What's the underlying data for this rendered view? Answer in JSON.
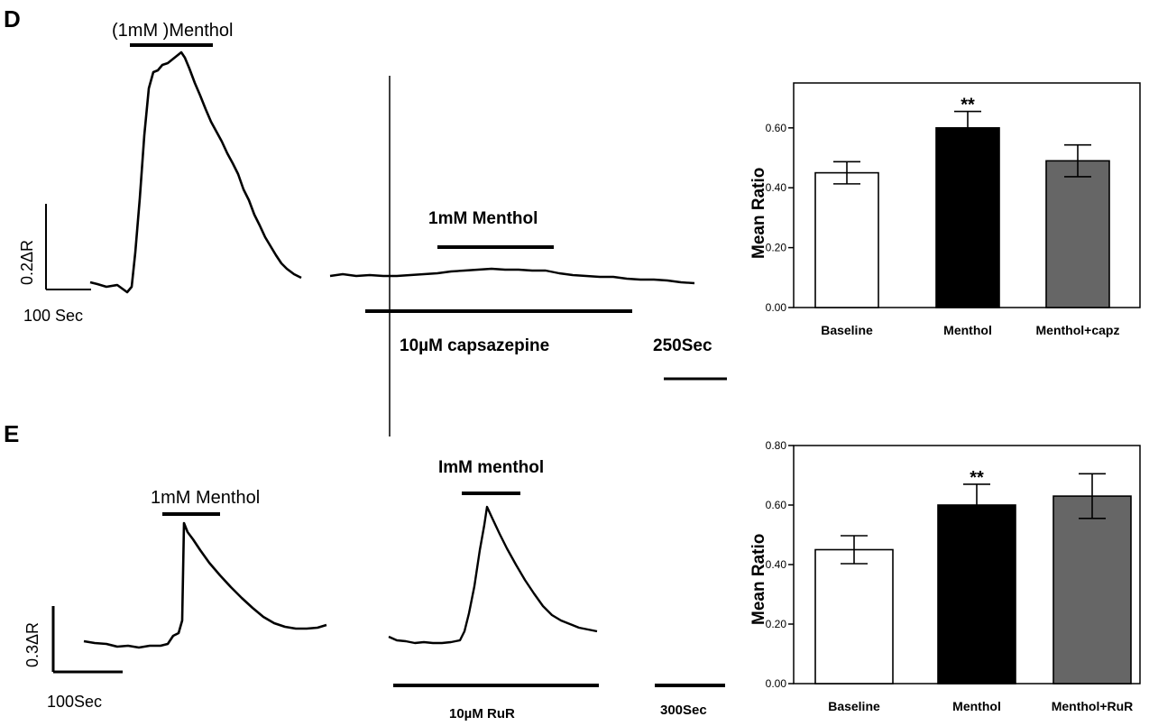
{
  "panels": [
    {
      "letter": "D",
      "trace_left": {
        "stimulus": "(1mM )Menthol",
        "scale_y": "0.2ΔR",
        "scale_x": "100 Sec"
      },
      "trace_right": {
        "stimulus": "1mM Menthol",
        "treatment": "10µM capsazepine",
        "scale_x": "250Sec"
      },
      "bar_chart": {
        "ylabel": "Mean Ratio",
        "ticks": [
          "0.00",
          "0.20",
          "0.40",
          "0.60"
        ],
        "categories": [
          "Baseline",
          "Menthol",
          "Menthol+capz"
        ],
        "significance": [
          "",
          "**",
          ""
        ]
      }
    },
    {
      "letter": "E",
      "trace_left": {
        "stimulus": "1mM Menthol",
        "scale_y": "0.3ΔR",
        "scale_x": "100Sec"
      },
      "trace_right": {
        "stimulus": "ImM menthol",
        "treatment": "10µM  RuR",
        "scale_x": "300Sec"
      },
      "bar_chart": {
        "ylabel": "Mean Ratio",
        "ticks": [
          "0.00",
          "0.20",
          "0.40",
          "0.60",
          "0.80"
        ],
        "categories": [
          "Baseline",
          "Menthol",
          "Menthol+RuR"
        ],
        "significance": [
          "",
          "**",
          ""
        ]
      }
    }
  ],
  "chart_data": [
    {
      "type": "bar",
      "categories": [
        "Baseline",
        "Menthol",
        "Menthol+capz"
      ],
      "values": [
        0.45,
        0.6,
        0.49
      ],
      "error": [
        0.037,
        0.055,
        0.053
      ],
      "bar_colors": [
        "#ffffff",
        "#000000",
        "#666666"
      ],
      "ylabel": "Mean Ratio",
      "ylim": [
        0,
        0.75
      ],
      "annotations": [
        "",
        "**",
        ""
      ]
    },
    {
      "type": "bar",
      "categories": [
        "Baseline",
        "Menthol",
        "Menthol+RuR"
      ],
      "values": [
        0.45,
        0.6,
        0.63
      ],
      "error": [
        0.047,
        0.07,
        0.075
      ],
      "bar_colors": [
        "#ffffff",
        "#000000",
        "#666666"
      ],
      "ylabel": "Mean Ratio",
      "ylim": [
        0,
        0.8
      ],
      "annotations": [
        "",
        "**",
        ""
      ]
    }
  ]
}
